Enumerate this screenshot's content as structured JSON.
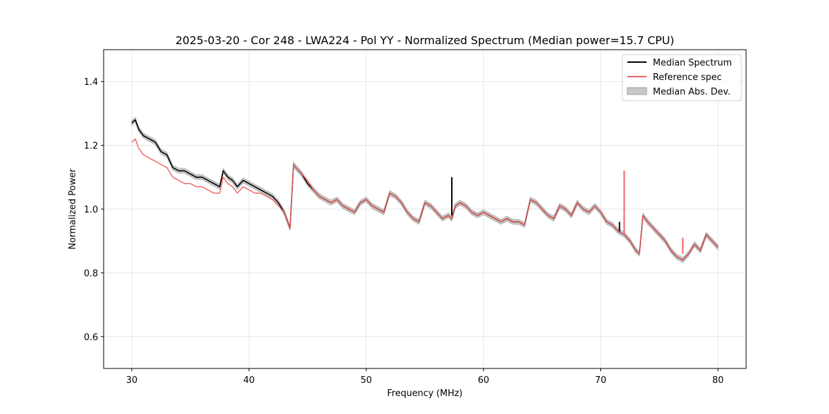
{
  "chart_data": {
    "type": "line",
    "title": "2025-03-20 - Cor 248 - LWA224 - Pol YY - Normalized Spectrum (Median power=15.7 CPU)",
    "xlabel": "Frequency (MHz)",
    "ylabel": "Normalized Power",
    "xlim": [
      27.6,
      82.4
    ],
    "ylim": [
      0.5,
      1.5
    ],
    "xticks": [
      30,
      40,
      50,
      60,
      70,
      80
    ],
    "yticks": [
      0.6,
      0.8,
      1.0,
      1.2,
      1.4
    ],
    "xtick_labels": [
      "30",
      "40",
      "50",
      "60",
      "70",
      "80"
    ],
    "ytick_labels": [
      "0.6",
      "0.8",
      "1.0",
      "1.2",
      "1.4"
    ],
    "grid": true,
    "legend_position": "top-right",
    "legend": {
      "median": "Median Spectrum",
      "reference": "Reference spec",
      "mad": "Median Abs. Dev."
    },
    "colors": {
      "median": "#000000",
      "reference": "#f06060",
      "mad_fill": "#c8c8c8",
      "mad_edge": "#a0a0a0"
    },
    "series": [
      {
        "name": "Median Spectrum",
        "x": [
          30.0,
          30.3,
          30.6,
          31.0,
          31.5,
          32.0,
          32.5,
          33.0,
          33.5,
          34.0,
          34.5,
          35.0,
          35.5,
          36.0,
          36.5,
          37.0,
          37.5,
          37.8,
          38.2,
          38.6,
          39.0,
          39.5,
          40.0,
          40.5,
          41.0,
          41.5,
          42.0,
          42.5,
          43.0,
          43.5,
          43.8,
          44.0,
          44.5,
          45.0,
          45.5,
          46.0,
          46.5,
          47.0,
          47.5,
          48.0,
          48.5,
          49.0,
          49.5,
          50.0,
          50.5,
          51.0,
          51.5,
          52.0,
          52.5,
          53.0,
          53.5,
          54.0,
          54.5,
          55.0,
          55.5,
          56.0,
          56.5,
          57.0,
          57.3,
          57.6,
          58.0,
          58.5,
          59.0,
          59.5,
          60.0,
          60.5,
          61.0,
          61.5,
          62.0,
          62.5,
          63.0,
          63.5,
          64.0,
          64.5,
          65.0,
          65.5,
          66.0,
          66.5,
          67.0,
          67.5,
          68.0,
          68.5,
          69.0,
          69.5,
          70.0,
          70.5,
          71.0,
          71.5,
          72.0,
          72.5,
          73.0,
          73.3,
          73.6,
          74.0,
          74.5,
          75.0,
          75.5,
          76.0,
          76.5,
          77.0,
          77.5,
          78.0,
          78.5,
          79.0,
          79.5,
          80.0
        ],
        "values": [
          1.27,
          1.28,
          1.25,
          1.23,
          1.22,
          1.21,
          1.18,
          1.17,
          1.13,
          1.12,
          1.12,
          1.11,
          1.1,
          1.1,
          1.09,
          1.08,
          1.07,
          1.12,
          1.1,
          1.09,
          1.07,
          1.09,
          1.08,
          1.07,
          1.06,
          1.05,
          1.04,
          1.02,
          0.99,
          0.94,
          1.14,
          1.13,
          1.11,
          1.08,
          1.06,
          1.04,
          1.03,
          1.02,
          1.03,
          1.01,
          1.0,
          0.99,
          1.02,
          1.03,
          1.01,
          1.0,
          0.99,
          1.05,
          1.04,
          1.02,
          0.99,
          0.97,
          0.96,
          1.02,
          1.01,
          0.99,
          0.97,
          0.98,
          0.97,
          1.01,
          1.02,
          1.01,
          0.99,
          0.98,
          0.99,
          0.98,
          0.97,
          0.96,
          0.97,
          0.96,
          0.96,
          0.95,
          1.03,
          1.02,
          1.0,
          0.98,
          0.97,
          1.01,
          1.0,
          0.98,
          1.02,
          1.0,
          0.99,
          1.01,
          0.99,
          0.96,
          0.95,
          0.93,
          0.92,
          0.9,
          0.87,
          0.86,
          0.98,
          0.96,
          0.94,
          0.92,
          0.9,
          0.87,
          0.85,
          0.84,
          0.86,
          0.89,
          0.87,
          0.92,
          0.9,
          0.88
        ]
      },
      {
        "name": "Reference spec",
        "x": [
          30.0,
          30.3,
          30.6,
          31.0,
          31.5,
          32.0,
          32.5,
          33.0,
          33.5,
          34.0,
          34.5,
          35.0,
          35.5,
          36.0,
          36.5,
          37.0,
          37.5,
          37.8,
          38.2,
          38.6,
          39.0,
          39.5,
          40.0,
          40.5,
          41.0,
          41.5,
          42.0,
          42.5,
          43.0,
          43.5,
          43.8,
          44.0,
          44.5,
          45.0,
          45.5,
          46.0,
          46.5,
          47.0,
          47.5,
          48.0,
          48.5,
          49.0,
          49.5,
          50.0,
          50.5,
          51.0,
          51.5,
          52.0,
          52.5,
          53.0,
          53.5,
          54.0,
          54.5,
          55.0,
          55.5,
          56.0,
          56.5,
          57.0,
          57.3,
          57.6,
          58.0,
          58.5,
          59.0,
          59.5,
          60.0,
          60.5,
          61.0,
          61.5,
          62.0,
          62.5,
          63.0,
          63.5,
          64.0,
          64.5,
          65.0,
          65.5,
          66.0,
          66.5,
          67.0,
          67.5,
          68.0,
          68.5,
          69.0,
          69.5,
          70.0,
          70.5,
          71.0,
          71.5,
          72.0,
          72.5,
          73.0,
          73.3,
          73.6,
          74.0,
          74.5,
          75.0,
          75.5,
          76.0,
          76.5,
          77.0,
          77.5,
          78.0,
          78.5,
          79.0,
          79.5,
          80.0
        ],
        "values": [
          1.21,
          1.22,
          1.19,
          1.17,
          1.16,
          1.15,
          1.14,
          1.13,
          1.1,
          1.09,
          1.08,
          1.08,
          1.07,
          1.07,
          1.06,
          1.05,
          1.05,
          1.1,
          1.08,
          1.07,
          1.05,
          1.07,
          1.06,
          1.05,
          1.05,
          1.04,
          1.03,
          1.01,
          0.99,
          0.94,
          1.14,
          1.13,
          1.11,
          1.09,
          1.06,
          1.04,
          1.03,
          1.02,
          1.03,
          1.01,
          1.0,
          0.99,
          1.02,
          1.03,
          1.01,
          1.0,
          0.99,
          1.05,
          1.04,
          1.02,
          0.99,
          0.97,
          0.96,
          1.02,
          1.01,
          0.99,
          0.97,
          0.98,
          0.97,
          1.01,
          1.02,
          1.01,
          0.99,
          0.98,
          0.99,
          0.98,
          0.97,
          0.96,
          0.97,
          0.96,
          0.96,
          0.95,
          1.03,
          1.02,
          1.0,
          0.98,
          0.97,
          1.01,
          1.0,
          0.98,
          1.02,
          1.0,
          0.99,
          1.01,
          0.99,
          0.96,
          0.95,
          0.93,
          0.92,
          0.9,
          0.87,
          0.86,
          0.98,
          0.96,
          0.94,
          0.92,
          0.9,
          0.87,
          0.85,
          0.84,
          0.86,
          0.89,
          0.87,
          0.92,
          0.9,
          0.88
        ]
      }
    ],
    "mad_band": {
      "name": "Median Abs. Dev.",
      "half_width": 0.008
    },
    "spikes": [
      {
        "series": "Median Spectrum",
        "x": 57.3,
        "from": 0.98,
        "to": 1.1
      },
      {
        "series": "Median Spectrum",
        "x": 71.6,
        "from": 0.93,
        "to": 0.96
      },
      {
        "series": "Reference spec",
        "x": 72.0,
        "from": 0.92,
        "to": 1.12
      },
      {
        "series": "Reference spec",
        "x": 77.0,
        "from": 0.86,
        "to": 0.91
      }
    ]
  }
}
